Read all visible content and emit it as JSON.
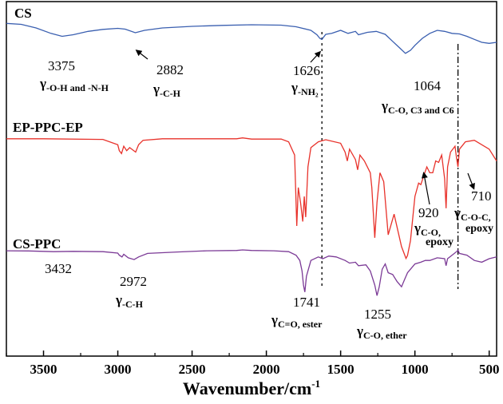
{
  "chart_data": {
    "type": "line",
    "title": "",
    "xlabel": "Wavenumber/cm",
    "xlabel_sup": "-1",
    "ylabel": "",
    "xlim": [
      3750,
      450
    ],
    "x_reversed": true,
    "x_ticks": [
      3500,
      3000,
      2500,
      2000,
      1500,
      1000,
      500
    ],
    "grid": false,
    "y_axis_labels": false,
    "reference_lines": [
      1626,
      710
    ],
    "series": [
      {
        "name": "CS",
        "color": "#3a5fb0",
        "points": [
          [
            3750,
            0.05
          ],
          [
            3650,
            0.1
          ],
          [
            3550,
            0.28
          ],
          [
            3450,
            0.55
          ],
          [
            3375,
            0.7
          ],
          [
            3300,
            0.62
          ],
          [
            3200,
            0.45
          ],
          [
            3100,
            0.35
          ],
          [
            3000,
            0.3
          ],
          [
            2950,
            0.34
          ],
          [
            2882,
            0.52
          ],
          [
            2820,
            0.4
          ],
          [
            2700,
            0.28
          ],
          [
            2500,
            0.2
          ],
          [
            2300,
            0.15
          ],
          [
            2100,
            0.12
          ],
          [
            1900,
            0.14
          ],
          [
            1800,
            0.22
          ],
          [
            1700,
            0.4
          ],
          [
            1660,
            0.62
          ],
          [
            1640,
            0.8
          ],
          [
            1626,
            0.85
          ],
          [
            1600,
            0.6
          ],
          [
            1560,
            0.55
          ],
          [
            1500,
            0.4
          ],
          [
            1450,
            0.55
          ],
          [
            1400,
            0.45
          ],
          [
            1380,
            0.62
          ],
          [
            1320,
            0.5
          ],
          [
            1260,
            0.45
          ],
          [
            1200,
            0.6
          ],
          [
            1150,
            0.95
          ],
          [
            1100,
            1.3
          ],
          [
            1064,
            1.55
          ],
          [
            1030,
            1.4
          ],
          [
            1000,
            1.15
          ],
          [
            950,
            0.8
          ],
          [
            900,
            0.55
          ],
          [
            850,
            0.4
          ],
          [
            800,
            0.45
          ],
          [
            750,
            0.55
          ],
          [
            700,
            0.58
          ],
          [
            650,
            0.7
          ],
          [
            600,
            0.85
          ],
          [
            550,
            1.0
          ],
          [
            500,
            1.05
          ],
          [
            450,
            1.0
          ]
        ]
      },
      {
        "name": "EP-PPC-EP",
        "color": "#e8322b",
        "points": [
          [
            3750,
            0.05
          ],
          [
            3500,
            0.05
          ],
          [
            3100,
            0.07
          ],
          [
            3000,
            0.25
          ],
          [
            2990,
            0.45
          ],
          [
            2975,
            0.55
          ],
          [
            2960,
            0.3
          ],
          [
            2940,
            0.45
          ],
          [
            2920,
            0.35
          ],
          [
            2880,
            0.5
          ],
          [
            2860,
            0.25
          ],
          [
            2830,
            0.1
          ],
          [
            2700,
            0.05
          ],
          [
            2400,
            0.05
          ],
          [
            2200,
            0.05
          ],
          [
            2160,
            0.02
          ],
          [
            2100,
            0.06
          ],
          [
            1900,
            0.06
          ],
          [
            1850,
            0.15
          ],
          [
            1810,
            0.6
          ],
          [
            1795,
            3.0
          ],
          [
            1785,
            1.7
          ],
          [
            1770,
            2.2
          ],
          [
            1755,
            2.85
          ],
          [
            1745,
            2.0
          ],
          [
            1735,
            2.7
          ],
          [
            1720,
            1.0
          ],
          [
            1700,
            0.35
          ],
          [
            1650,
            0.15
          ],
          [
            1600,
            0.08
          ],
          [
            1500,
            0.2
          ],
          [
            1470,
            0.5
          ],
          [
            1455,
            0.8
          ],
          [
            1440,
            0.4
          ],
          [
            1400,
            0.75
          ],
          [
            1385,
            1.1
          ],
          [
            1370,
            0.6
          ],
          [
            1340,
            0.8
          ],
          [
            1300,
            1.2
          ],
          [
            1290,
            1.7
          ],
          [
            1270,
            3.4
          ],
          [
            1255,
            2.2
          ],
          [
            1235,
            1.2
          ],
          [
            1210,
            1.5
          ],
          [
            1180,
            3.3
          ],
          [
            1140,
            2.6
          ],
          [
            1090,
            3.7
          ],
          [
            1060,
            4.1
          ],
          [
            1050,
            4.0
          ],
          [
            1030,
            3.5
          ],
          [
            1000,
            2.0
          ],
          [
            975,
            1.55
          ],
          [
            960,
            1.6
          ],
          [
            940,
            1.3
          ],
          [
            920,
            1.0
          ],
          [
            900,
            1.2
          ],
          [
            880,
            1.2
          ],
          [
            860,
            0.8
          ],
          [
            840,
            0.85
          ],
          [
            820,
            0.6
          ],
          [
            800,
            1.4
          ],
          [
            790,
            2.4
          ],
          [
            780,
            1.0
          ],
          [
            760,
            0.5
          ],
          [
            730,
            0.3
          ],
          [
            720,
            0.7
          ],
          [
            710,
            1.0
          ],
          [
            700,
            0.4
          ],
          [
            660,
            0.15
          ],
          [
            600,
            0.1
          ],
          [
            500,
            0.4
          ],
          [
            450,
            0.8
          ]
        ]
      },
      {
        "name": "CS-PPC",
        "color": "#7b3a96",
        "points": [
          [
            3750,
            0.05
          ],
          [
            3600,
            0.06
          ],
          [
            3432,
            0.1
          ],
          [
            3300,
            0.08
          ],
          [
            3100,
            0.1
          ],
          [
            3000,
            0.18
          ],
          [
            2990,
            0.3
          ],
          [
            2972,
            0.4
          ],
          [
            2960,
            0.25
          ],
          [
            2930,
            0.45
          ],
          [
            2890,
            0.55
          ],
          [
            2860,
            0.4
          ],
          [
            2800,
            0.2
          ],
          [
            2600,
            0.12
          ],
          [
            2400,
            0.05
          ],
          [
            2200,
            0.03
          ],
          [
            2160,
            0.0
          ],
          [
            2100,
            0.03
          ],
          [
            1950,
            0.05
          ],
          [
            1850,
            0.1
          ],
          [
            1800,
            0.3
          ],
          [
            1775,
            0.6
          ],
          [
            1760,
            1.2
          ],
          [
            1750,
            2.0
          ],
          [
            1741,
            2.4
          ],
          [
            1730,
            1.5
          ],
          [
            1700,
            0.6
          ],
          [
            1650,
            0.4
          ],
          [
            1620,
            0.5
          ],
          [
            1580,
            0.35
          ],
          [
            1530,
            0.4
          ],
          [
            1470,
            0.6
          ],
          [
            1440,
            0.75
          ],
          [
            1400,
            0.7
          ],
          [
            1380,
            0.9
          ],
          [
            1330,
            0.85
          ],
          [
            1300,
            1.2
          ],
          [
            1270,
            2.0
          ],
          [
            1255,
            2.6
          ],
          [
            1240,
            2.1
          ],
          [
            1220,
            1.1
          ],
          [
            1200,
            0.8
          ],
          [
            1180,
            1.3
          ],
          [
            1150,
            1.4
          ],
          [
            1120,
            1.8
          ],
          [
            1090,
            2.1
          ],
          [
            1070,
            1.7
          ],
          [
            1050,
            1.3
          ],
          [
            1030,
            1.1
          ],
          [
            1000,
            0.8
          ],
          [
            960,
            0.7
          ],
          [
            930,
            0.6
          ],
          [
            900,
            0.6
          ],
          [
            850,
            0.45
          ],
          [
            800,
            0.5
          ],
          [
            790,
            0.9
          ],
          [
            780,
            0.5
          ],
          [
            750,
            0.3
          ],
          [
            720,
            0.1
          ],
          [
            710,
            0.02
          ],
          [
            700,
            0.2
          ],
          [
            650,
            0.3
          ],
          [
            600,
            0.6
          ],
          [
            550,
            0.7
          ],
          [
            500,
            0.5
          ],
          [
            450,
            0.4
          ]
        ]
      }
    ],
    "annotations": [
      {
        "series": "CS",
        "peak": "3375",
        "assign_prefix": "γ",
        "assign_sub": "-O-H and -N-H"
      },
      {
        "series": "CS",
        "peak": "2882",
        "assign_prefix": "γ",
        "assign_sub": "-C-H"
      },
      {
        "series": "CS",
        "peak": "1626",
        "assign_prefix": "γ",
        "assign_sub": "-NH₂"
      },
      {
        "series": "CS",
        "peak": "1064",
        "assign_prefix": "γ",
        "assign_sub": "C-O, C3 and C6"
      },
      {
        "series": "EP-PPC-EP",
        "peak": "920",
        "assign_prefix": "γ",
        "assign_sub": "C-O,",
        "assign_line2": "epoxy"
      },
      {
        "series": "EP-PPC-EP",
        "peak": "710",
        "assign_prefix": "γ",
        "assign_sub": "C-O-C,",
        "assign_line2": "epoxy"
      },
      {
        "series": "CS-PPC",
        "peak": "3432"
      },
      {
        "series": "CS-PPC",
        "peak": "2972",
        "assign_prefix": "γ",
        "assign_sub": "-C-H"
      },
      {
        "series": "CS-PPC",
        "peak": "1741",
        "assign_prefix": "γ",
        "assign_sub": "C=O, ester"
      },
      {
        "series": "CS-PPC",
        "peak": "1255",
        "assign_prefix": "γ",
        "assign_sub": "C-O, ether"
      }
    ]
  }
}
